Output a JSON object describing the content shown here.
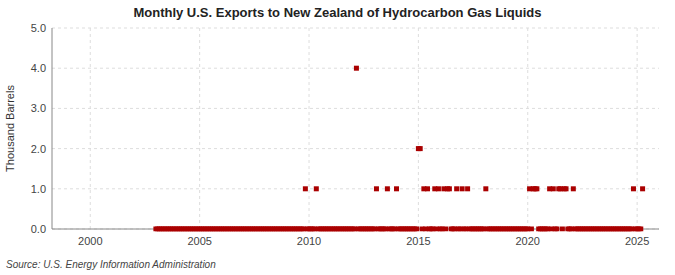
{
  "chart_data": {
    "type": "scatter",
    "title": "Monthly U.S. Exports to New Zealand of Hydrocarbon Gas Liquids",
    "ylabel": "Thousand Barrels",
    "annotations": [
      "Source: U.S. Energy Information Administration"
    ],
    "color": "#aa0000",
    "marker": "square",
    "grid": true,
    "xlim": [
      1998.25,
      2026.0
    ],
    "ylim": [
      0.0,
      5.0
    ],
    "xticks": [
      2000,
      2005,
      2010,
      2015,
      2020,
      2025
    ],
    "yticks": [
      {
        "value": 0.0,
        "label": "0.0"
      },
      {
        "value": 1.0,
        "label": "1.0"
      },
      {
        "value": 2.0,
        "label": "2.0"
      },
      {
        "value": 3.0,
        "label": "3.0"
      },
      {
        "value": 4.0,
        "label": "4.0"
      },
      {
        "value": 5.0,
        "label": "5.0"
      }
    ],
    "x": [
      2003.0,
      2003.083,
      2003.167,
      2003.25,
      2003.333,
      2003.417,
      2003.5,
      2003.583,
      2003.667,
      2003.75,
      2003.833,
      2003.917,
      2004.0,
      2004.083,
      2004.167,
      2004.25,
      2004.333,
      2004.417,
      2004.5,
      2004.583,
      2004.667,
      2004.75,
      2004.833,
      2004.917,
      2005.0,
      2005.083,
      2005.167,
      2005.25,
      2005.333,
      2005.417,
      2005.5,
      2005.583,
      2005.667,
      2005.75,
      2005.833,
      2005.917,
      2006.0,
      2006.083,
      2006.167,
      2006.25,
      2006.333,
      2006.417,
      2006.5,
      2006.583,
      2006.667,
      2006.75,
      2006.833,
      2006.917,
      2007.0,
      2007.083,
      2007.167,
      2007.25,
      2007.333,
      2007.417,
      2007.5,
      2007.583,
      2007.667,
      2007.75,
      2007.833,
      2007.917,
      2008.0,
      2008.083,
      2008.167,
      2008.25,
      2008.333,
      2008.417,
      2008.5,
      2008.583,
      2008.667,
      2008.75,
      2008.833,
      2008.917,
      2009.0,
      2009.083,
      2009.167,
      2009.25,
      2009.333,
      2009.417,
      2009.5,
      2009.583,
      2009.667,
      2009.75,
      2009.833,
      2009.917,
      2010.0,
      2010.083,
      2010.167,
      2010.25,
      2010.333,
      2010.417,
      2010.5,
      2010.583,
      2010.667,
      2010.75,
      2010.833,
      2010.917,
      2011.0,
      2011.083,
      2011.167,
      2011.25,
      2011.333,
      2011.417,
      2011.5,
      2011.583,
      2011.667,
      2011.75,
      2011.833,
      2011.917,
      2012.0,
      2012.083,
      2012.167,
      2012.25,
      2012.333,
      2012.417,
      2012.5,
      2012.583,
      2012.667,
      2012.75,
      2012.833,
      2012.917,
      2013.0,
      2013.083,
      2013.167,
      2013.25,
      2013.333,
      2013.417,
      2013.5,
      2013.583,
      2013.667,
      2013.75,
      2013.833,
      2013.917,
      2014.0,
      2014.083,
      2014.167,
      2014.25,
      2014.333,
      2014.417,
      2014.5,
      2014.583,
      2014.667,
      2014.75,
      2014.833,
      2014.917,
      2015.0,
      2015.083,
      2015.167,
      2015.25,
      2015.333,
      2015.417,
      2015.5,
      2015.583,
      2015.667,
      2015.75,
      2015.833,
      2015.917,
      2016.0,
      2016.083,
      2016.167,
      2016.25,
      2016.333,
      2016.417,
      2016.5,
      2016.583,
      2016.667,
      2016.75,
      2016.833,
      2016.917,
      2017.0,
      2017.083,
      2017.167,
      2017.25,
      2017.333,
      2017.417,
      2017.5,
      2017.583,
      2017.667,
      2017.75,
      2017.833,
      2017.917,
      2018.0,
      2018.083,
      2018.167,
      2018.25,
      2018.333,
      2018.417,
      2018.5,
      2018.583,
      2018.667,
      2018.75,
      2018.833,
      2018.917,
      2019.0,
      2019.083,
      2019.167,
      2019.25,
      2019.333,
      2019.417,
      2019.5,
      2019.583,
      2019.667,
      2019.75,
      2019.833,
      2019.917,
      2020.0,
      2020.083,
      2020.167,
      2020.25,
      2020.333,
      2020.417,
      2020.5,
      2020.583,
      2020.667,
      2020.75,
      2020.833,
      2020.917,
      2021.0,
      2021.083,
      2021.167,
      2021.25,
      2021.333,
      2021.417,
      2021.5,
      2021.583,
      2021.667,
      2021.75,
      2021.833,
      2021.917,
      2022.0,
      2022.083,
      2022.167,
      2022.25,
      2022.333,
      2022.417,
      2022.5,
      2022.583,
      2022.667,
      2022.75,
      2022.833,
      2022.917,
      2023.0,
      2023.083,
      2023.167,
      2023.25,
      2023.333,
      2023.417,
      2023.5,
      2023.583,
      2023.667,
      2023.75,
      2023.833,
      2023.917,
      2024.0,
      2024.083,
      2024.167,
      2024.25,
      2024.333,
      2024.417,
      2024.5,
      2024.583,
      2024.667,
      2024.75,
      2024.833,
      2024.917,
      2025.0,
      2025.083,
      2025.167,
      2025.25
    ],
    "values": [
      0,
      0,
      0,
      0,
      0,
      0,
      0,
      0,
      0,
      0,
      0,
      0,
      0,
      0,
      0,
      0,
      0,
      0,
      0,
      0,
      0,
      0,
      0,
      0,
      0,
      0,
      0,
      0,
      0,
      0,
      0,
      0,
      0,
      0,
      0,
      0,
      0,
      0,
      0,
      0,
      0,
      0,
      0,
      0,
      0,
      0,
      0,
      0,
      0,
      0,
      0,
      0,
      0,
      0,
      0,
      0,
      0,
      0,
      0,
      0,
      0,
      0,
      0,
      0,
      0,
      0,
      0,
      0,
      0,
      0,
      0,
      0,
      0,
      0,
      0,
      0,
      0,
      0,
      0,
      0,
      0,
      0,
      1.0,
      0,
      0,
      0,
      0,
      0,
      1.0,
      0,
      0,
      0,
      0,
      0,
      0,
      0,
      0,
      0,
      0,
      0,
      0,
      0,
      0,
      0,
      0,
      0,
      0,
      0,
      0,
      0,
      4.0,
      0,
      0,
      0,
      0,
      0,
      0,
      0,
      0,
      0,
      0,
      1.0,
      0,
      0,
      0,
      0,
      0,
      1.0,
      0,
      0,
      0,
      0,
      1.0,
      0,
      0,
      0,
      0,
      0,
      0,
      0,
      0,
      0,
      0,
      0,
      2.0,
      2.0,
      0,
      1.0,
      0,
      1.0,
      0,
      0,
      0,
      1.0,
      0,
      1.0,
      0,
      0,
      1.0,
      0,
      1.0,
      1.0,
      0,
      0,
      0,
      1.0,
      0,
      0,
      1.0,
      0,
      0,
      1.0,
      0,
      0,
      0,
      0,
      0,
      0,
      0,
      0,
      0,
      1.0,
      0,
      0,
      0,
      0,
      0,
      0,
      0,
      0,
      0,
      0,
      0,
      0,
      0,
      0,
      0,
      0,
      0,
      0,
      0,
      0,
      0,
      0,
      0,
      1.0,
      0,
      1.0,
      1.0,
      1.0,
      0,
      0,
      0,
      0,
      0,
      0,
      1.0,
      0,
      1.0,
      0,
      0,
      1.0,
      1.0,
      0,
      1.0,
      1.0,
      0,
      0,
      0,
      1.0,
      0,
      0,
      0,
      0,
      0,
      0,
      0,
      0,
      0,
      0,
      0,
      0,
      0,
      0,
      0,
      0,
      0,
      0,
      0,
      0,
      0,
      0,
      0,
      0,
      0,
      0,
      0,
      0,
      0,
      0,
      0,
      0,
      1.0,
      0,
      0,
      0,
      0,
      1.0
    ]
  }
}
